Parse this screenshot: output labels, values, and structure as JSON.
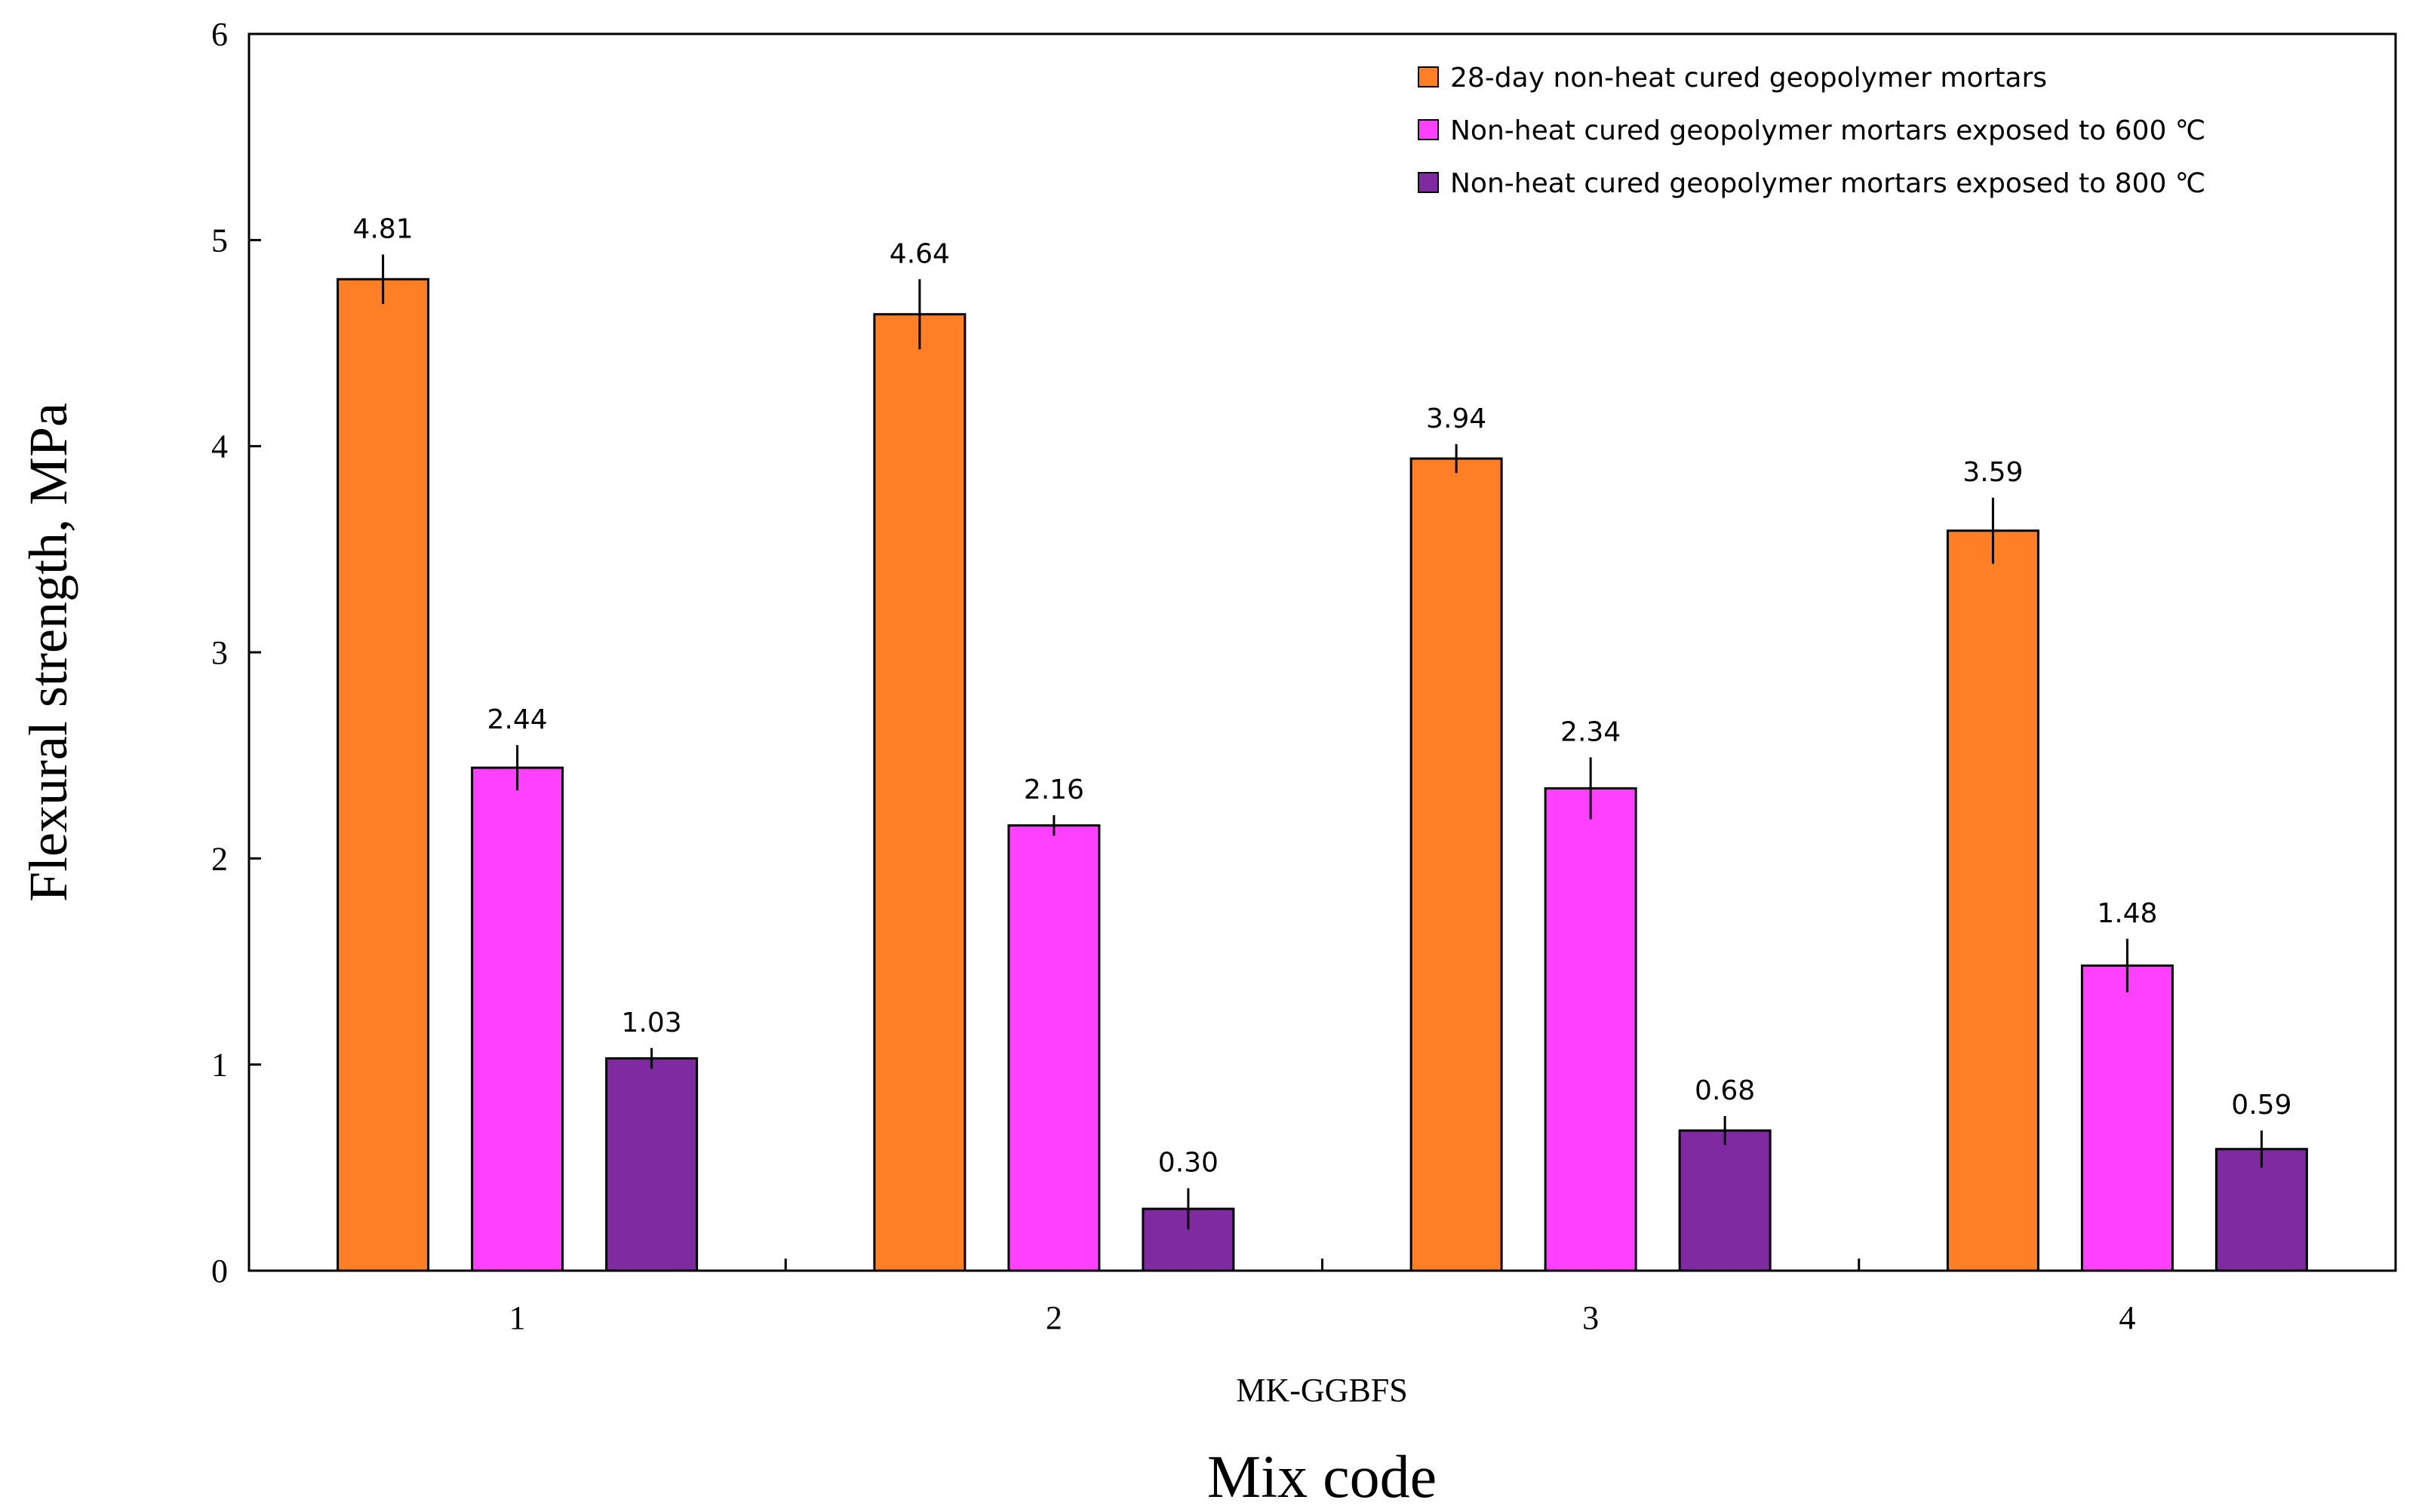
{
  "chart_data": {
    "type": "bar",
    "title": "",
    "ylabel": "Flexural strength, MPa",
    "xlabel": "Mix code",
    "group_label": "MK-GGBFS",
    "ylim": [
      0,
      6
    ],
    "yticks": [
      "0",
      "1",
      "2",
      "3",
      "4",
      "5",
      "6"
    ],
    "categories": [
      "1",
      "2",
      "3",
      "4"
    ],
    "legend_position": "top-right",
    "series": [
      {
        "name": "28-day non-heat cured geopolymer mortars",
        "color": "#FF7F27",
        "values": [
          4.81,
          4.64,
          3.94,
          3.59
        ],
        "labels": [
          "4.81",
          "4.64",
          "3.94",
          "3.59"
        ],
        "errors": [
          0.12,
          0.17,
          0.07,
          0.16
        ]
      },
      {
        "name": "Non-heat cured geopolymer mortars exposed to 600 ℃",
        "color": "#FF40FF",
        "values": [
          2.44,
          2.16,
          2.34,
          1.48
        ],
        "labels": [
          "2.44",
          "2.16",
          "2.34",
          "1.48"
        ],
        "errors": [
          0.11,
          0.05,
          0.15,
          0.13
        ]
      },
      {
        "name": "Non-heat cured geopolymer mortars exposed to 800 ℃",
        "color": "#7F2AA0",
        "values": [
          1.03,
          0.3,
          0.68,
          0.59
        ],
        "labels": [
          "1.03",
          "0.30",
          "0.68",
          "0.59"
        ],
        "errors": [
          0.05,
          0.1,
          0.07,
          0.09
        ]
      }
    ]
  }
}
